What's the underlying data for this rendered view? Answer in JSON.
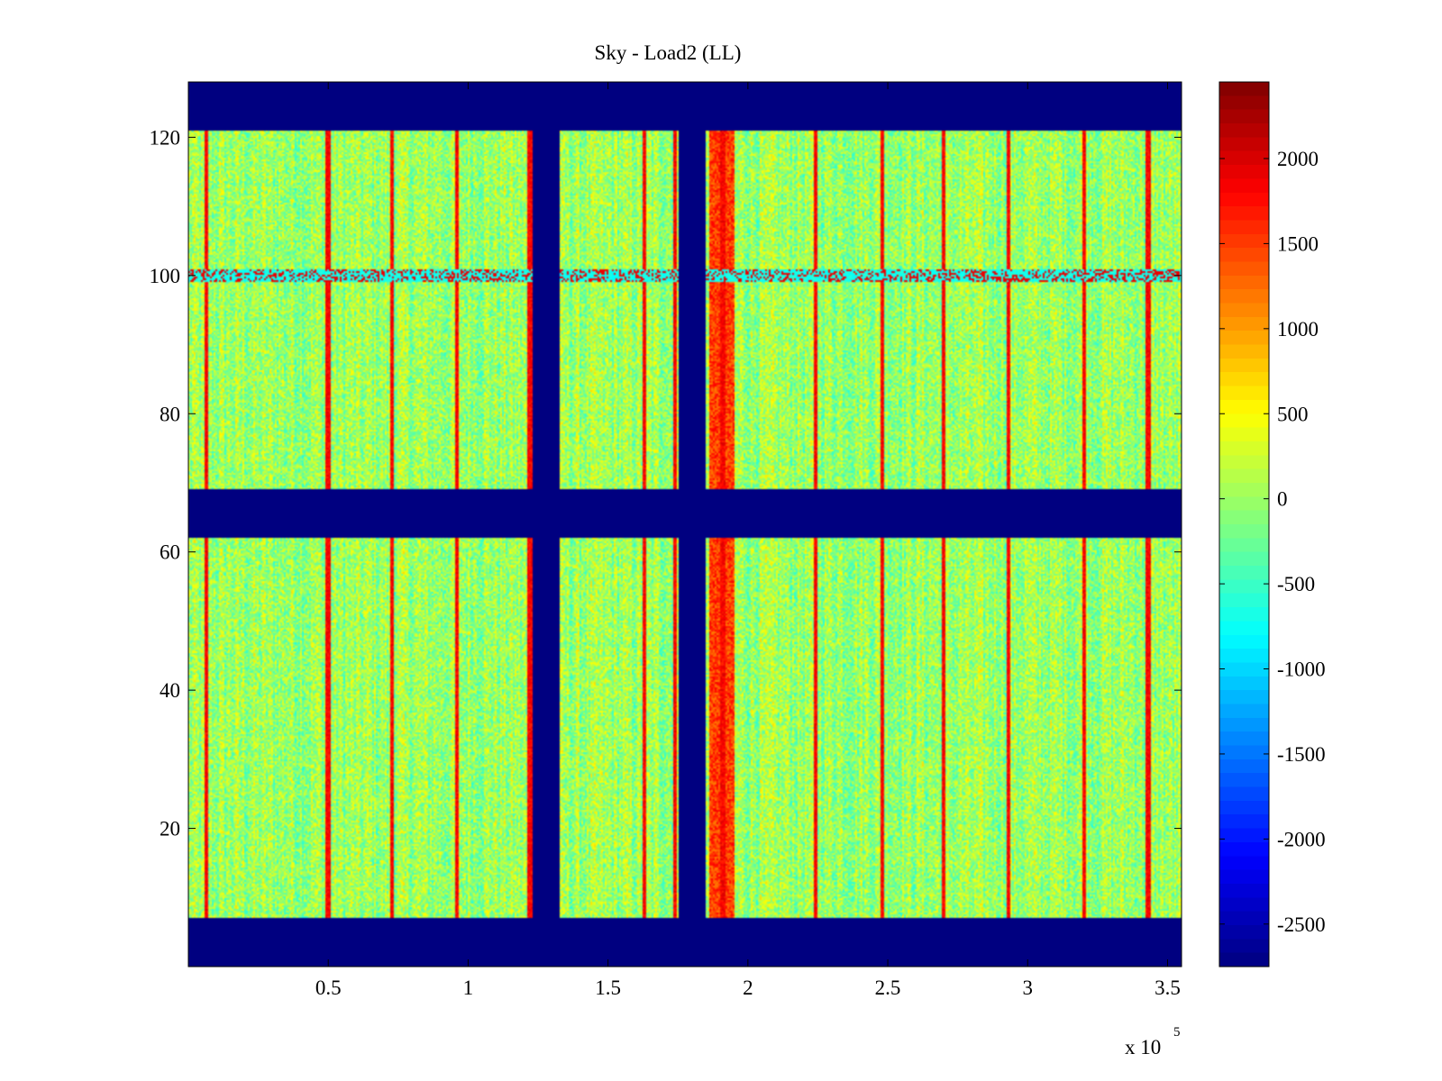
{
  "chart_data": {
    "type": "heatmap",
    "title": "Sky - Load2 (LL)",
    "xlabel": "",
    "ylabel": "",
    "x_exponent_label": "x 10",
    "x_exponent": "5",
    "xlim": [
      0,
      3.55
    ],
    "ylim": [
      0,
      128
    ],
    "x_ticks": [
      0.5,
      1,
      1.5,
      2,
      2.5,
      3,
      3.5
    ],
    "x_tick_labels": [
      "0.5",
      "1",
      "1.5",
      "2",
      "2.5",
      "3",
      "3.5"
    ],
    "y_ticks": [
      20,
      40,
      60,
      80,
      100,
      120
    ],
    "y_tick_labels": [
      "20",
      "40",
      "60",
      "80",
      "100",
      "120"
    ],
    "colorbar": {
      "colormap": "jet",
      "clim": [
        -2750,
        2450
      ],
      "ticks": [
        2000,
        1500,
        1000,
        500,
        0,
        -500,
        -1000,
        -1500,
        -2000,
        -2500
      ],
      "tick_labels": [
        "2000",
        "1500",
        "1000",
        "500",
        "0",
        "-500",
        "-1000",
        "-1500",
        "-2000",
        "-2500"
      ]
    },
    "masked_value": -2750,
    "masked_row_ranges": [
      [
        0,
        7
      ],
      [
        62,
        69
      ],
      [
        121,
        128
      ]
    ],
    "masked_col_ranges": [
      [
        1.23,
        1.33
      ],
      [
        1.75,
        1.85
      ]
    ],
    "background_level": 0,
    "hot_columns": [
      0.065,
      0.5,
      0.73,
      0.96,
      1.22,
      1.63,
      1.74,
      1.91,
      2.24,
      2.48,
      2.7,
      2.93,
      3.2,
      3.43
    ],
    "hot_column_value": 1800,
    "warm_band": {
      "x_range": [
        1.86,
        1.95
      ],
      "value": 1500
    },
    "striped_row": {
      "y_range": [
        99,
        101
      ],
      "value": 1900
    },
    "grid": false,
    "colorbar_position": "right"
  }
}
